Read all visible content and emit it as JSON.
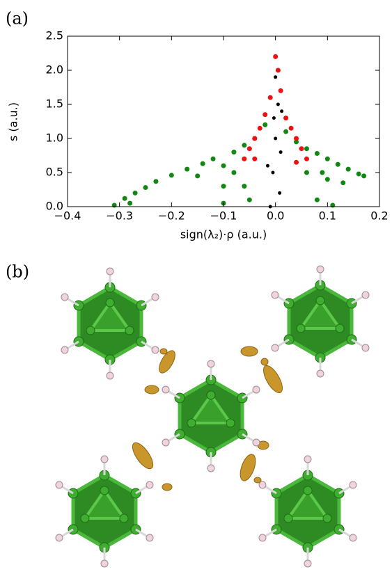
{
  "panel_a_label": "(a)",
  "panel_b_label": "(b)",
  "chart_data": {
    "type": "scatter",
    "xlabel": "sign(λ₂)·ρ (a.u.)",
    "ylabel": "s (a.u.)",
    "xlim": [
      -0.4,
      0.2
    ],
    "ylim": [
      0,
      2.5
    ],
    "xticks": [
      {
        "value": -0.4,
        "label": "−0.4"
      },
      {
        "value": -0.3,
        "label": "−0.3"
      },
      {
        "value": -0.2,
        "label": "−0.2"
      },
      {
        "value": -0.1,
        "label": "−0.1"
      },
      {
        "value": 0,
        "label": "0.0"
      },
      {
        "value": 0.1,
        "label": "0.1"
      },
      {
        "value": 0.2,
        "label": "0.2"
      }
    ],
    "yticks": [
      {
        "value": 0,
        "label": "0.0"
      },
      {
        "value": 0.5,
        "label": "0.5"
      },
      {
        "value": 1,
        "label": "1.0"
      },
      {
        "value": 1.5,
        "label": "1.5"
      },
      {
        "value": 2,
        "label": "2.0"
      },
      {
        "value": 2.5,
        "label": "2.5"
      }
    ],
    "series": [
      {
        "color": "#118811",
        "x": [
          -0.31,
          -0.29,
          -0.27,
          -0.25,
          -0.23,
          -0.2,
          -0.17,
          -0.14,
          -0.12,
          -0.1,
          -0.1,
          -0.1,
          -0.08,
          -0.06,
          -0.04,
          -0.02,
          -0.08,
          -0.06,
          -0.05,
          0.02,
          0.04,
          0.06,
          0.08,
          0.1,
          0.12,
          0.14,
          0.16,
          0.17,
          0.1,
          0.08,
          0.11,
          0.09,
          0.13,
          -0.15,
          -0.28,
          0.06
        ],
        "values": [
          0.02,
          0.12,
          0.2,
          0.28,
          0.37,
          0.46,
          0.55,
          0.63,
          0.7,
          0.6,
          0.3,
          0.05,
          0.8,
          0.9,
          1.0,
          1.2,
          0.5,
          0.3,
          0.1,
          1.1,
          0.95,
          0.85,
          0.78,
          0.7,
          0.62,
          0.55,
          0.48,
          0.45,
          0.4,
          0.1,
          0.02,
          0.5,
          0.35,
          0.45,
          0.05,
          0.5
        ]
      },
      {
        "color": "#ee1111",
        "x": [
          -0.06,
          -0.05,
          -0.04,
          -0.03,
          -0.02,
          -0.01,
          0,
          0.01,
          0.02,
          0.03,
          0.04,
          0.05,
          0.06,
          -0.04,
          0.04,
          0.005
        ],
        "values": [
          0.7,
          0.85,
          1.0,
          1.15,
          1.35,
          1.6,
          2.2,
          1.7,
          1.3,
          1.15,
          1.0,
          0.85,
          0.7,
          0.7,
          0.65,
          2.0
        ]
      },
      {
        "color": "#000000",
        "x": [
          -0.01,
          -0.005,
          0,
          0.005,
          0,
          0.01,
          -0.015,
          0.008,
          -0.003,
          0.012
        ],
        "values": [
          0.0,
          0.5,
          1.0,
          1.5,
          1.9,
          0.8,
          0.6,
          0.2,
          1.3,
          1.4
        ]
      }
    ]
  }
}
